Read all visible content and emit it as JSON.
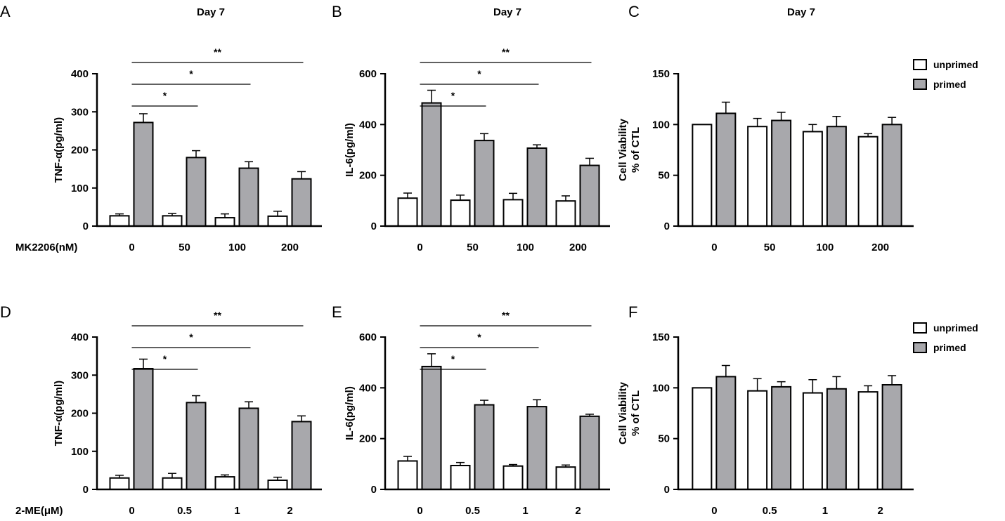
{
  "figure": {
    "colors": {
      "unprimed": "#ffffff",
      "primed": "#a8a8ac",
      "stroke": "#000000"
    },
    "legend": {
      "unprimed_label": "unprimed",
      "primed_label": "primed"
    },
    "panels": [
      {
        "label": "A",
        "title": "Day 7",
        "ylabel": "TNF-α(pg/ml)",
        "xtitle": "MK2206(nM)",
        "categories": [
          "0",
          "50",
          "100",
          "200"
        ],
        "ylim": [
          0,
          400
        ],
        "yticks": [
          0,
          100,
          200,
          300,
          400
        ],
        "series": [
          {
            "name": "unprimed",
            "values": [
              27,
              27,
              22,
              26
            ],
            "errors": [
              5,
              6,
              10,
              13
            ]
          },
          {
            "name": "primed",
            "values": [
              272,
              180,
              152,
              124
            ],
            "errors": [
              23,
              18,
              17,
              19
            ]
          }
        ],
        "significance": [
          {
            "from": 0,
            "to": 1,
            "label": "*"
          },
          {
            "from": 0,
            "to": 2,
            "label": "*"
          },
          {
            "from": 0,
            "to": 3,
            "label": "**"
          }
        ],
        "legend": false
      },
      {
        "label": "B",
        "title": "Day 7",
        "ylabel": "IL-6(pg/ml)",
        "xtitle": "",
        "categories": [
          "0",
          "50",
          "100",
          "200"
        ],
        "ylim": [
          0,
          600
        ],
        "yticks": [
          0,
          200,
          400,
          600
        ],
        "series": [
          {
            "name": "unprimed",
            "values": [
              110,
              102,
              104,
              99
            ],
            "errors": [
              20,
              20,
              25,
              20
            ]
          },
          {
            "name": "primed",
            "values": [
              485,
              337,
              307,
              239
            ],
            "errors": [
              50,
              27,
              13,
              28
            ]
          }
        ],
        "significance": [
          {
            "from": 0,
            "to": 1,
            "label": "*"
          },
          {
            "from": 0,
            "to": 2,
            "label": "*"
          },
          {
            "from": 0,
            "to": 3,
            "label": "**"
          }
        ],
        "legend": false
      },
      {
        "label": "C",
        "title": "Day 7",
        "ylabel": "Cell Viability\n% of CTL",
        "xtitle": "",
        "categories": [
          "0",
          "50",
          "100",
          "200"
        ],
        "ylim": [
          0,
          150
        ],
        "yticks": [
          0,
          50,
          100,
          150
        ],
        "series": [
          {
            "name": "unprimed",
            "values": [
              100,
              98,
              93,
              88
            ],
            "errors": [
              0,
              8,
              7,
              3
            ]
          },
          {
            "name": "primed",
            "values": [
              111,
              104,
              98,
              100
            ],
            "errors": [
              11,
              8,
              10,
              7
            ]
          }
        ],
        "significance": [],
        "legend": true
      },
      {
        "label": "D",
        "title": "",
        "ylabel": "TNF-α(pg/ml)",
        "xtitle": "2-ME(μM)",
        "categories": [
          "0",
          "0.5",
          "1",
          "2"
        ],
        "ylim": [
          0,
          400
        ],
        "yticks": [
          0,
          100,
          200,
          300,
          400
        ],
        "series": [
          {
            "name": "unprimed",
            "values": [
              30,
              30,
              33,
              24
            ],
            "errors": [
              7,
              12,
              5,
              8
            ]
          },
          {
            "name": "primed",
            "values": [
              317,
              228,
              213,
              178
            ],
            "errors": [
              25,
              18,
              17,
              15
            ]
          }
        ],
        "significance": [
          {
            "from": 0,
            "to": 1,
            "label": "*"
          },
          {
            "from": 0,
            "to": 2,
            "label": "*"
          },
          {
            "from": 0,
            "to": 3,
            "label": "**"
          }
        ],
        "legend": false
      },
      {
        "label": "E",
        "title": "",
        "ylabel": "IL-6(pg/ml)",
        "xtitle": "",
        "categories": [
          "0",
          "0.5",
          "1",
          "2"
        ],
        "ylim": [
          0,
          600
        ],
        "yticks": [
          0,
          200,
          400,
          600
        ],
        "series": [
          {
            "name": "unprimed",
            "values": [
              112,
              94,
              92,
              88
            ],
            "errors": [
              18,
              12,
              6,
              8
            ]
          },
          {
            "name": "primed",
            "values": [
              484,
              333,
              326,
              288
            ],
            "errors": [
              50,
              18,
              27,
              8
            ]
          }
        ],
        "significance": [
          {
            "from": 0,
            "to": 1,
            "label": "*"
          },
          {
            "from": 0,
            "to": 2,
            "label": "*"
          },
          {
            "from": 0,
            "to": 3,
            "label": "**"
          }
        ],
        "legend": false
      },
      {
        "label": "F",
        "title": "",
        "ylabel": "Cell Viability\n% of CTL",
        "xtitle": "",
        "categories": [
          "0",
          "0.5",
          "1",
          "2"
        ],
        "ylim": [
          0,
          150
        ],
        "yticks": [
          0,
          50,
          100,
          150
        ],
        "series": [
          {
            "name": "unprimed",
            "values": [
              100,
              97,
              95,
              96
            ],
            "errors": [
              0,
              12,
              13,
              6
            ]
          },
          {
            "name": "primed",
            "values": [
              111,
              101,
              99,
              103
            ],
            "errors": [
              11,
              5,
              12,
              9
            ]
          }
        ],
        "significance": [],
        "legend": true
      }
    ]
  },
  "chart_data": [
    {
      "type": "bar",
      "panel": "A",
      "title": "Day 7",
      "xlabel": "MK2206(nM)",
      "ylabel": "TNF-α(pg/ml)",
      "categories": [
        "0",
        "50",
        "100",
        "200"
      ],
      "ylim": [
        0,
        400
      ],
      "series": [
        {
          "name": "unprimed",
          "values": [
            27,
            27,
            22,
            26
          ]
        },
        {
          "name": "primed",
          "values": [
            272,
            180,
            152,
            124
          ]
        }
      ]
    },
    {
      "type": "bar",
      "panel": "B",
      "title": "Day 7",
      "xlabel": "",
      "ylabel": "IL-6(pg/ml)",
      "categories": [
        "0",
        "50",
        "100",
        "200"
      ],
      "ylim": [
        0,
        600
      ],
      "series": [
        {
          "name": "unprimed",
          "values": [
            110,
            102,
            104,
            99
          ]
        },
        {
          "name": "primed",
          "values": [
            485,
            337,
            307,
            239
          ]
        }
      ]
    },
    {
      "type": "bar",
      "panel": "C",
      "title": "Day 7",
      "xlabel": "",
      "ylabel": "Cell Viability % of CTL",
      "categories": [
        "0",
        "50",
        "100",
        "200"
      ],
      "ylim": [
        0,
        150
      ],
      "series": [
        {
          "name": "unprimed",
          "values": [
            100,
            98,
            93,
            88
          ]
        },
        {
          "name": "primed",
          "values": [
            111,
            104,
            98,
            100
          ]
        }
      ]
    },
    {
      "type": "bar",
      "panel": "D",
      "title": "",
      "xlabel": "2-ME(μM)",
      "ylabel": "TNF-α(pg/ml)",
      "categories": [
        "0",
        "0.5",
        "1",
        "2"
      ],
      "ylim": [
        0,
        400
      ],
      "series": [
        {
          "name": "unprimed",
          "values": [
            30,
            30,
            33,
            24
          ]
        },
        {
          "name": "primed",
          "values": [
            317,
            228,
            213,
            178
          ]
        }
      ]
    },
    {
      "type": "bar",
      "panel": "E",
      "title": "",
      "xlabel": "",
      "ylabel": "IL-6(pg/ml)",
      "categories": [
        "0",
        "0.5",
        "1",
        "2"
      ],
      "ylim": [
        0,
        600
      ],
      "series": [
        {
          "name": "unprimed",
          "values": [
            112,
            94,
            92,
            88
          ]
        },
        {
          "name": "primed",
          "values": [
            484,
            333,
            326,
            288
          ]
        }
      ]
    },
    {
      "type": "bar",
      "panel": "F",
      "title": "",
      "xlabel": "",
      "ylabel": "Cell Viability % of CTL",
      "categories": [
        "0",
        "0.5",
        "1",
        "2"
      ],
      "ylim": [
        0,
        150
      ],
      "series": [
        {
          "name": "unprimed",
          "values": [
            100,
            97,
            95,
            96
          ]
        },
        {
          "name": "primed",
          "values": [
            111,
            101,
            99,
            103
          ]
        }
      ]
    }
  ]
}
